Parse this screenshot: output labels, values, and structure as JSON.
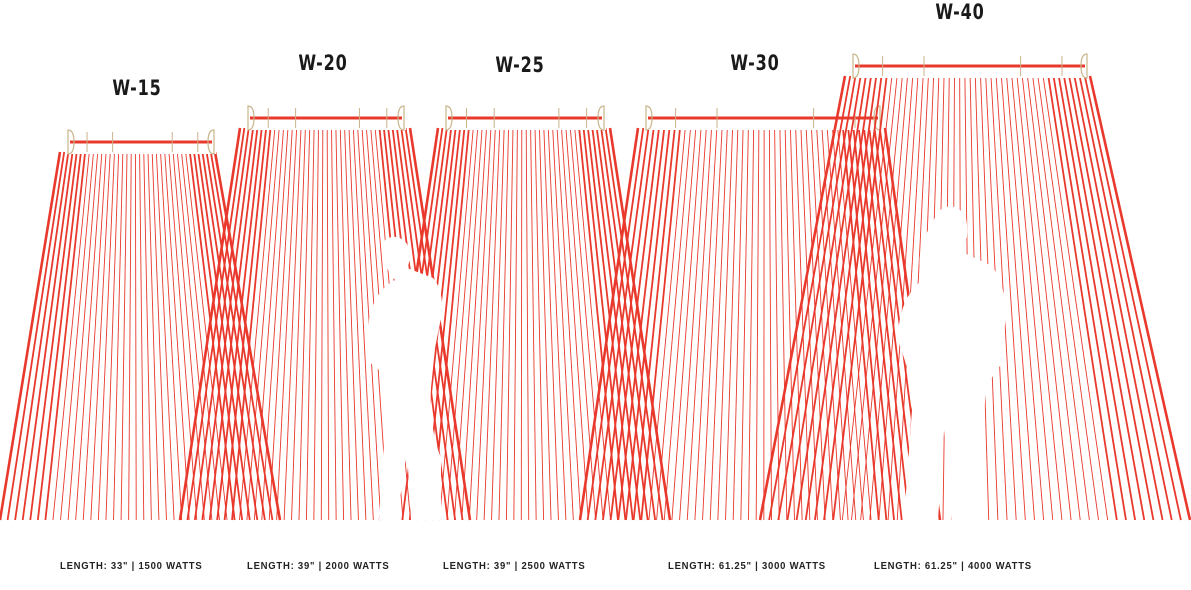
{
  "colors": {
    "beam": "#e8392c",
    "bracket": "#c8b48a",
    "text": "#1a1a1a"
  },
  "heaters": [
    {
      "model": "W-15",
      "spec": "LENGTH: 33\" | 1500 WATTS"
    },
    {
      "model": "W-20",
      "spec": "LENGTH: 39\" | 2000 WATTS"
    },
    {
      "model": "W-25",
      "spec": "LENGTH: 39\" | 2500 WATTS"
    },
    {
      "model": "W-30",
      "spec": "LENGTH: 61.25\" | 3000 WATTS"
    },
    {
      "model": "W-40",
      "spec": "LENGTH: 61.25\" | 4000 WATTS"
    }
  ]
}
